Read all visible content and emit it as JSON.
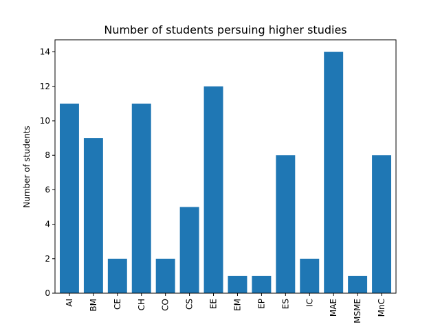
{
  "chart_data": {
    "type": "bar",
    "title": "Number of students persuing higher studies",
    "xlabel": "",
    "ylabel": "Number of students",
    "categories": [
      "AI",
      "BM",
      "CE",
      "CH",
      "CO",
      "CS",
      "EE",
      "EM",
      "EP",
      "ES",
      "IC",
      "MAE",
      "MSME",
      "MnC"
    ],
    "values": [
      11,
      9,
      2,
      11,
      2,
      5,
      12,
      1,
      1,
      8,
      2,
      14,
      1,
      8
    ],
    "ylim": [
      0,
      14.7
    ],
    "yticks": [
      0,
      2,
      4,
      6,
      8,
      10,
      12,
      14
    ],
    "bar_color": "#1f77b4",
    "grid": false,
    "legend": "none"
  }
}
